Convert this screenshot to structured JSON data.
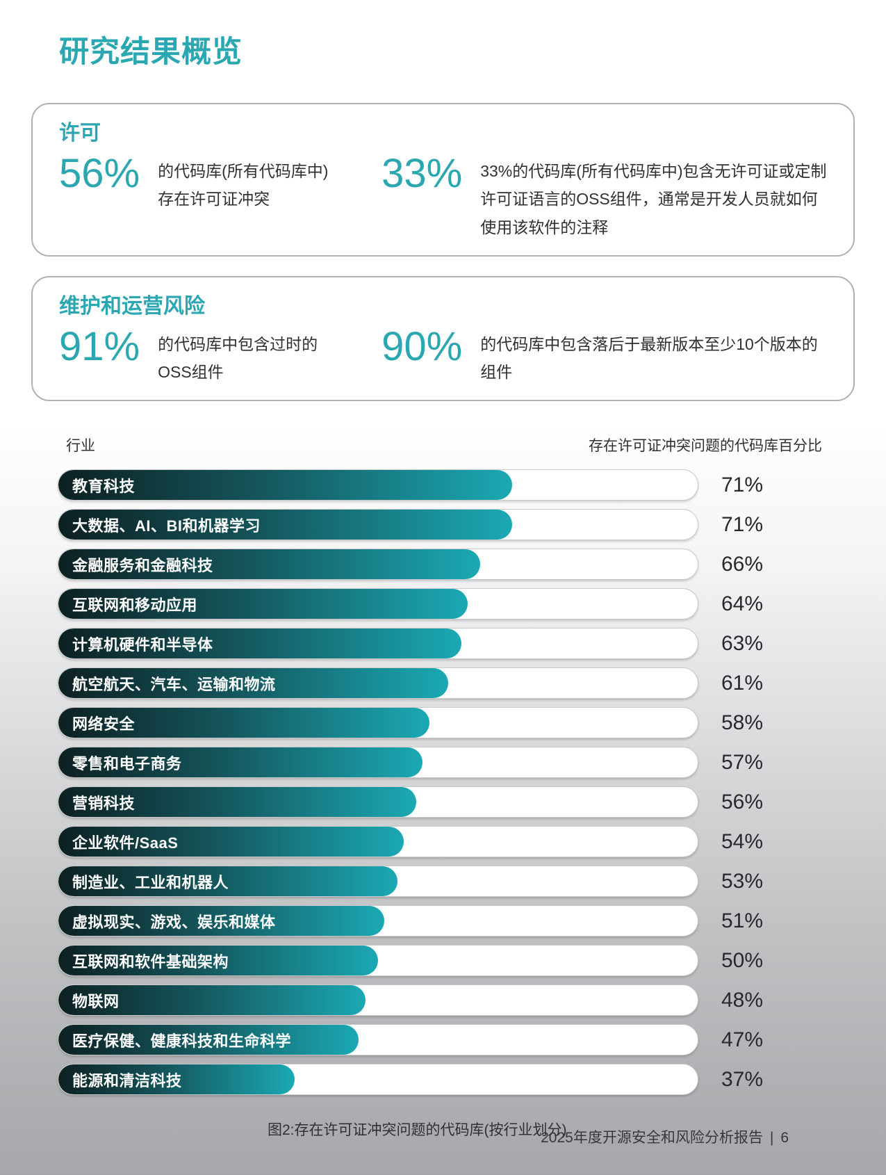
{
  "page": {
    "title": "研究结果概览",
    "caption": "图2:存在许可证冲突问题的代码库(按行业划分)",
    "footer_text": "2025年度开源安全和风险分析报告",
    "footer_separator": "|",
    "footer_page_number": "6"
  },
  "colors": {
    "accent_teal": "#2BA7B2",
    "bar_gradient_dark": "#0D2022",
    "bar_gradient_bright": "#1BA9B4",
    "text_dark": "#2B2D30",
    "page_bottom_gray": "#A5A7AA"
  },
  "stat_boxes": [
    {
      "heading": "许可",
      "stats": [
        {
          "value": "56%",
          "text": "的代码库(所有代码库中)存在许可证冲突"
        },
        {
          "value": "33%",
          "text": "33%的代码库(所有代码库中)包含无许可证或定制许可证语言的OSS组件，通常是开发人员就如何使用该软件的注释"
        }
      ]
    },
    {
      "heading": "维护和运营风险",
      "stats": [
        {
          "value": "91%",
          "text": "的代码库中包含过时的OSS组件"
        },
        {
          "value": "90%",
          "text": "的代码库中包含落后于最新版本至少10个版本的组件"
        }
      ]
    }
  ],
  "chart_data": {
    "type": "bar",
    "orientation": "horizontal",
    "title": "图2:存在许可证冲突问题的代码库(按行业划分)",
    "col_header_left": "行业",
    "col_header_right": "存在许可证冲突问题的代码库百分比",
    "unit": "%",
    "xlim": [
      0,
      100
    ],
    "categories": [
      "教育科技",
      "大数据、AI、BI和机器学习",
      "金融服务和金融科技",
      "互联网和移动应用",
      "计算机硬件和半导体",
      "航空航天、汽车、运输和物流",
      "网络安全",
      "零售和电子商务",
      "营销科技",
      "企业软件/SaaS",
      "制造业、工业和机器人",
      "虚拟现实、游戏、娱乐和媒体",
      "互联网和软件基础架构",
      "物联网",
      "医疗保健、健康科技和生命科学",
      "能源和清洁科技"
    ],
    "values": [
      71,
      71,
      66,
      64,
      63,
      61,
      58,
      57,
      56,
      54,
      53,
      51,
      50,
      48,
      47,
      37
    ]
  }
}
